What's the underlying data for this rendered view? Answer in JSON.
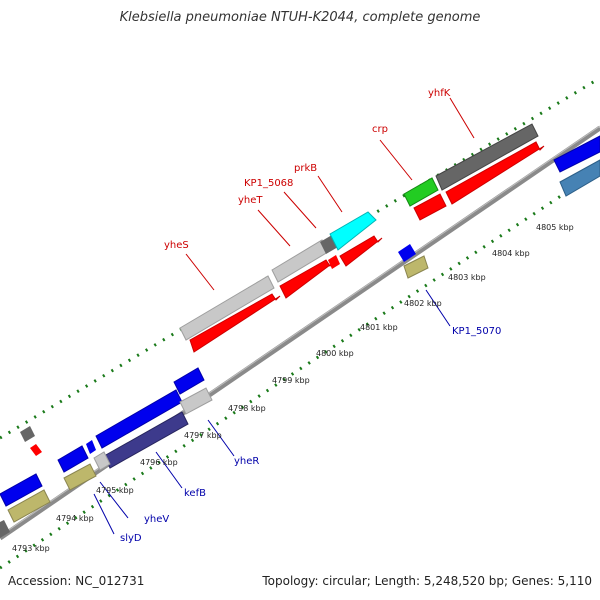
{
  "title": "Klebsiella pneumoniae NTUH-K2044, complete genome",
  "footer": {
    "accession": "Accession: NC_012731",
    "topology": "Topology: circular; Length: 5,248,520 bp; Genes: 5,110"
  },
  "colors": {
    "red_label": "#cc0000",
    "blue_label": "#0000aa",
    "backbone": "#666666",
    "tick": "#1a7a1a",
    "red": "#ff0000",
    "blue": "#0000ee",
    "gray_light": "#c8c8c8",
    "gray_dark": "#666666",
    "olive": "#bdb76b",
    "cyan": "#00ffff",
    "green": "#22cc22",
    "navy": "#3d3a8c",
    "steel": "#4682b4"
  },
  "kbp_labels": [
    "4793 kbp",
    "4794 kbp",
    "4795 kbp",
    "4796 kbp",
    "4797 kbp",
    "4798 kbp",
    "4799 kbp",
    "4800 kbp",
    "4801 kbp",
    "4802 kbp",
    "4803 kbp",
    "4804 kbp",
    "4805 kbp"
  ],
  "gene_labels_top": [
    "yhfK",
    "crp",
    "prkB",
    "KP1_5068",
    "yheT",
    "yheS"
  ],
  "gene_labels_bottom": [
    "KP1_5070",
    "yheR",
    "kefB",
    "yheV",
    "slyD"
  ]
}
